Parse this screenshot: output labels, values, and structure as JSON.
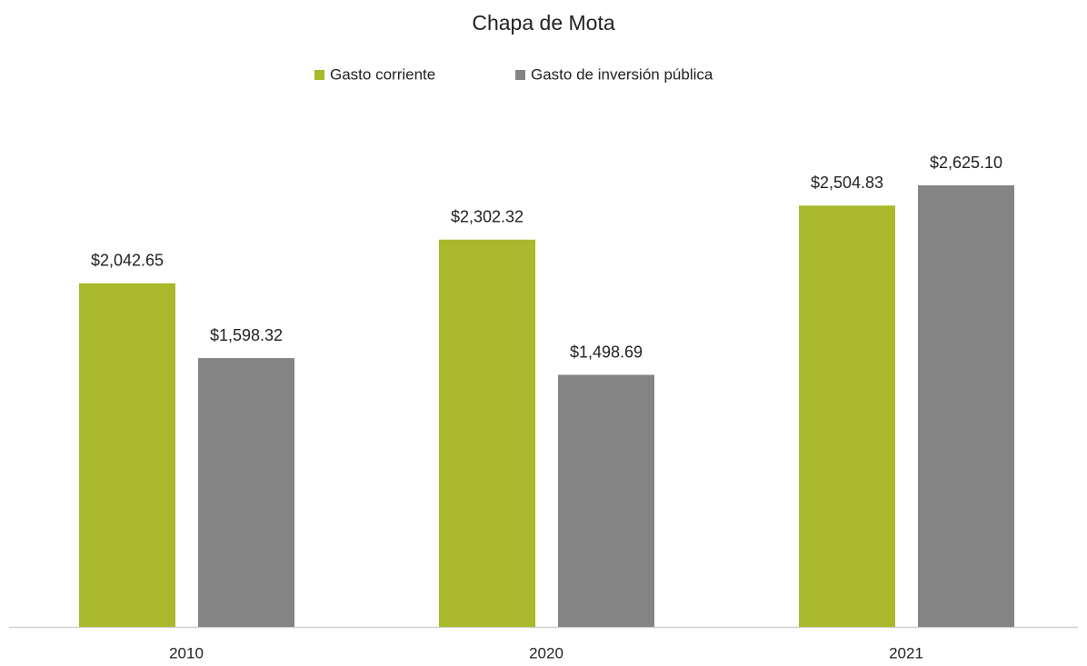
{
  "chart_data": {
    "type": "bar",
    "title": "Chapa de Mota",
    "categories": [
      "2010",
      "2020",
      "2021"
    ],
    "series": [
      {
        "name": "Gasto corriente",
        "color": "#a8b92b",
        "values": [
          2042.65,
          2302.32,
          2504.83
        ],
        "value_labels": [
          "$2,042.65",
          "$2,302.32",
          "$2,504.83"
        ]
      },
      {
        "name": "Gasto de inversión pública",
        "color": "#848484",
        "values": [
          1598.32,
          1498.69,
          2625.1
        ],
        "value_labels": [
          "$1,598.32",
          "$1,498.69",
          "$2,625.10"
        ]
      }
    ]
  }
}
